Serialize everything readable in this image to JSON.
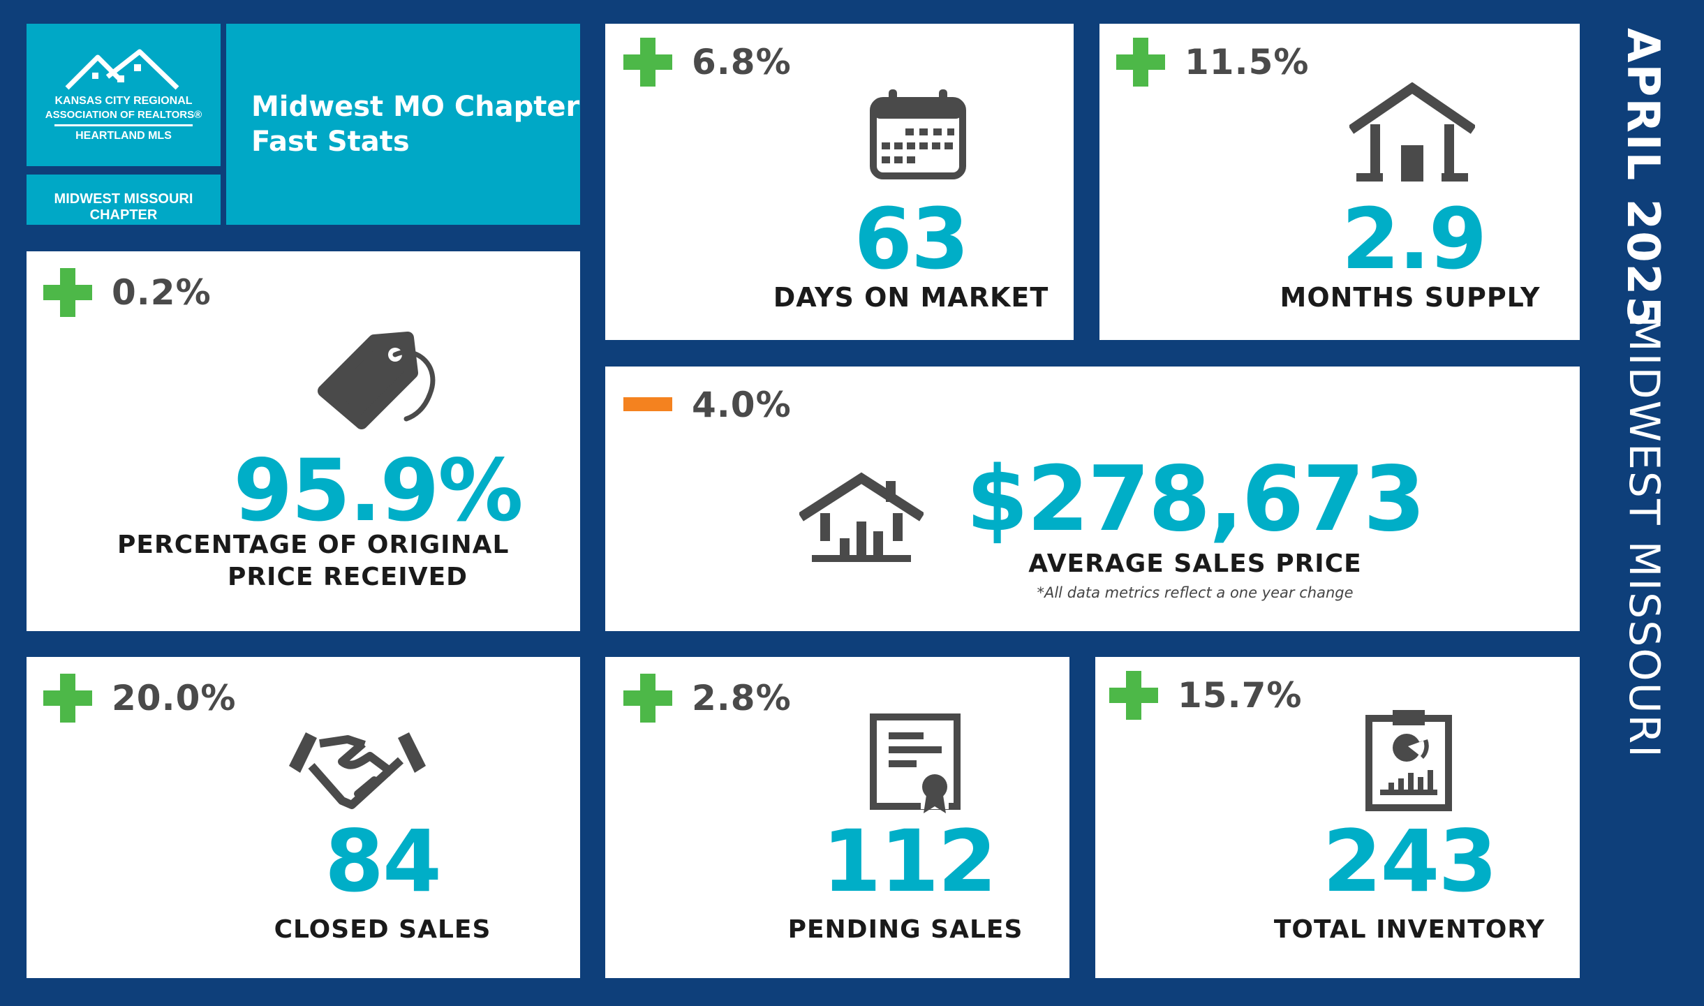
{
  "header": {
    "logo": {
      "line1": "KANSAS CITY REGIONAL",
      "line2": "ASSOCIATION OF REALTORS®",
      "line3": "HEARTLAND MLS"
    },
    "chapter_label": "MIDWEST MISSOURI CHAPTER",
    "title_line1": "Midwest MO Chapter",
    "title_line2": "Fast Stats"
  },
  "side": {
    "date": "APRIL 2025",
    "region": "MIDWEST MISSOURI"
  },
  "metrics": {
    "days_on_market": {
      "change": "6.8%",
      "direction": "up",
      "value": "63",
      "label": "DAYS ON MARKET",
      "icon": "calendar-icon"
    },
    "months_supply": {
      "change": "11.5%",
      "direction": "up",
      "value": "2.9",
      "label": "MONTHS SUPPLY",
      "icon": "house-icon"
    },
    "pct_original_price": {
      "change": "0.2%",
      "direction": "up",
      "value": "95.9%",
      "label_line1": "PERCENTAGE OF ORIGINAL",
      "label_line2": "PRICE RECEIVED",
      "icon": "price-tag-icon"
    },
    "avg_sales_price": {
      "change": "4.0%",
      "direction": "down",
      "value": "$278,673",
      "label": "AVERAGE SALES PRICE",
      "note": "*All data metrics reflect a one year change",
      "icon": "house-chart-icon"
    },
    "closed_sales": {
      "change": "20.0%",
      "direction": "up",
      "value": "84",
      "label": "CLOSED SALES",
      "icon": "handshake-icon"
    },
    "pending_sales": {
      "change": "2.8%",
      "direction": "up",
      "value": "112",
      "label": "PENDING SALES",
      "icon": "certificate-icon"
    },
    "total_inventory": {
      "change": "15.7%",
      "direction": "up",
      "value": "243",
      "label": "TOTAL INVENTORY",
      "icon": "clipboard-chart-icon"
    }
  },
  "colors": {
    "background": "#0e3f7a",
    "teal": "#00a8c6",
    "value": "#00aec7",
    "increase": "#4db848",
    "decrease": "#f4821f",
    "icon": "#4a4a4a"
  }
}
